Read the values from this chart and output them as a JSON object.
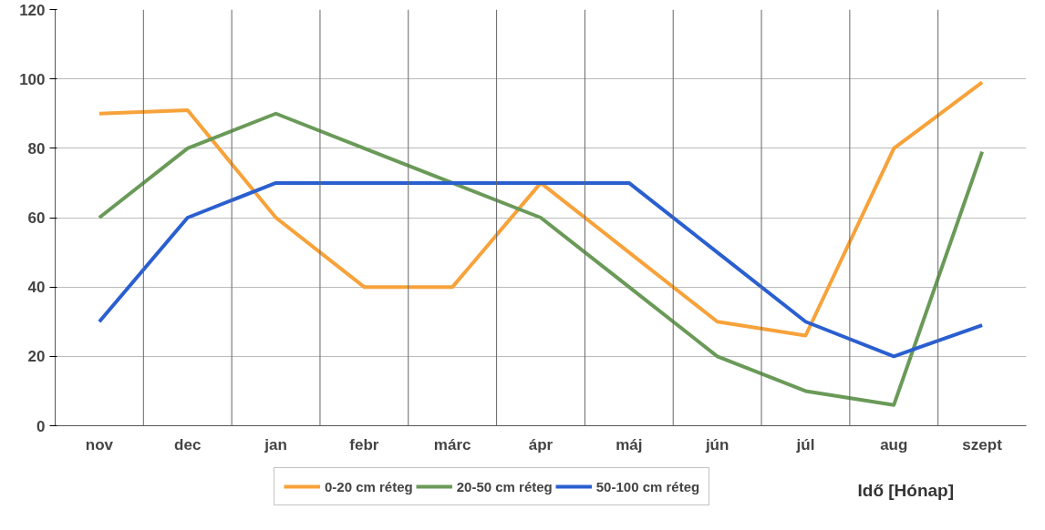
{
  "chart_data": {
    "type": "line",
    "xlabel": "Idő [Hónap]",
    "categories": [
      "nov",
      "dec",
      "jan",
      "febr",
      "márc",
      "ápr",
      "máj",
      "jún",
      "júl",
      "aug",
      "szept"
    ],
    "series": [
      {
        "name": "0-20 cm réteg",
        "color": "#f7a23a",
        "values": [
          90,
          91,
          60,
          40,
          40,
          70,
          50,
          30,
          26,
          80,
          99
        ]
      },
      {
        "name": "20-50 cm réteg",
        "color": "#6a9a58",
        "values": [
          60,
          80,
          90,
          80,
          70,
          60,
          40,
          20,
          10,
          6,
          79
        ]
      },
      {
        "name": "50-100 cm réteg",
        "color": "#2a5fd0",
        "values": [
          30,
          60,
          70,
          70,
          70,
          70,
          70,
          50,
          30,
          20,
          29
        ]
      }
    ],
    "ylim": [
      0,
      120
    ],
    "yticks": [
      0,
      20,
      40,
      60,
      80,
      100,
      120
    ],
    "grid": true,
    "legend": "bottom",
    "marker": "none",
    "line_style": "solid"
  }
}
